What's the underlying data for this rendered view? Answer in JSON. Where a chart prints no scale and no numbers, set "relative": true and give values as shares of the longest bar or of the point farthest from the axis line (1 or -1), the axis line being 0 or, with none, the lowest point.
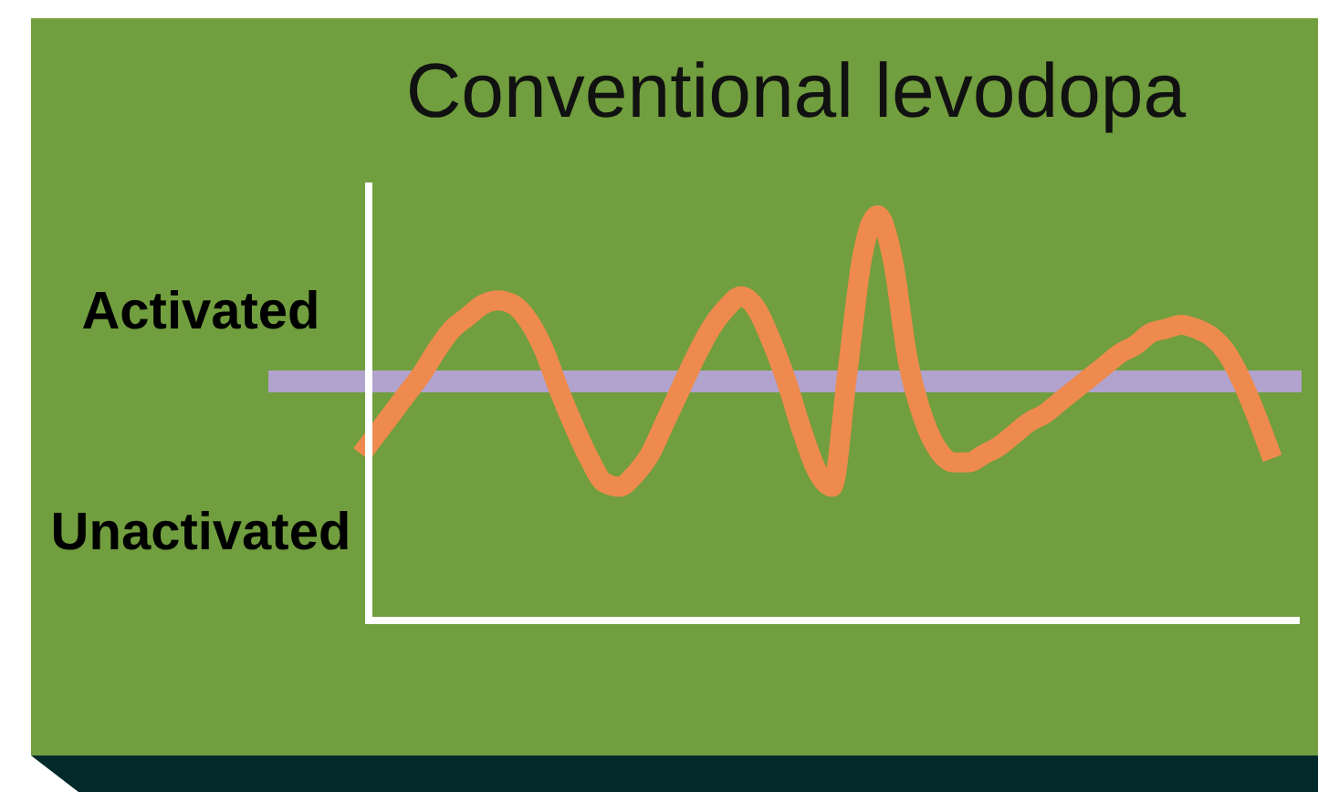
{
  "chart_data": {
    "type": "line",
    "title": "Conventional levodopa",
    "relative": true,
    "categories": [
      null,
      null,
      null,
      null,
      null,
      null,
      null,
      null,
      null,
      null,
      null,
      null,
      null,
      null,
      null,
      null,
      null,
      null,
      null,
      null,
      null,
      null,
      null,
      null,
      null,
      null,
      null,
      null,
      null,
      null,
      null,
      null,
      null,
      null,
      null,
      null,
      null,
      null,
      null,
      null,
      null,
      null,
      null,
      null,
      null,
      null,
      null,
      null,
      null,
      null,
      null,
      null,
      null,
      null,
      null,
      null,
      null,
      null,
      null,
      null,
      null
    ],
    "series": [
      {
        "color": "#ee8a4d",
        "values": [
          0.41,
          0.46,
          0.51,
          0.56,
          0.61,
          0.67,
          0.72,
          0.75,
          0.78,
          0.79,
          0.78,
          0.74,
          0.67,
          0.57,
          0.48,
          0.4,
          0.34,
          0.33,
          0.36,
          0.41,
          0.49,
          0.57,
          0.65,
          0.72,
          0.77,
          0.8,
          0.77,
          0.69,
          0.59,
          0.47,
          0.37,
          0.33,
          0.61,
          0.9,
          1,
          0.89,
          0.64,
          0.5,
          0.42,
          0.39,
          0.39,
          0.41,
          0.43,
          0.46,
          0.49,
          0.51,
          0.54,
          0.57,
          0.6,
          0.63,
          0.66,
          0.68,
          0.71,
          0.72,
          0.73,
          0.72,
          0.7,
          0.66,
          0.59,
          0.5,
          0.4
        ]
      }
    ],
    "ref_lines": [
      {
        "axis": "y",
        "value": 0.59,
        "color": "#b1a3cd"
      }
    ],
    "annotations": [
      "Activated",
      "Unactivated"
    ]
  }
}
